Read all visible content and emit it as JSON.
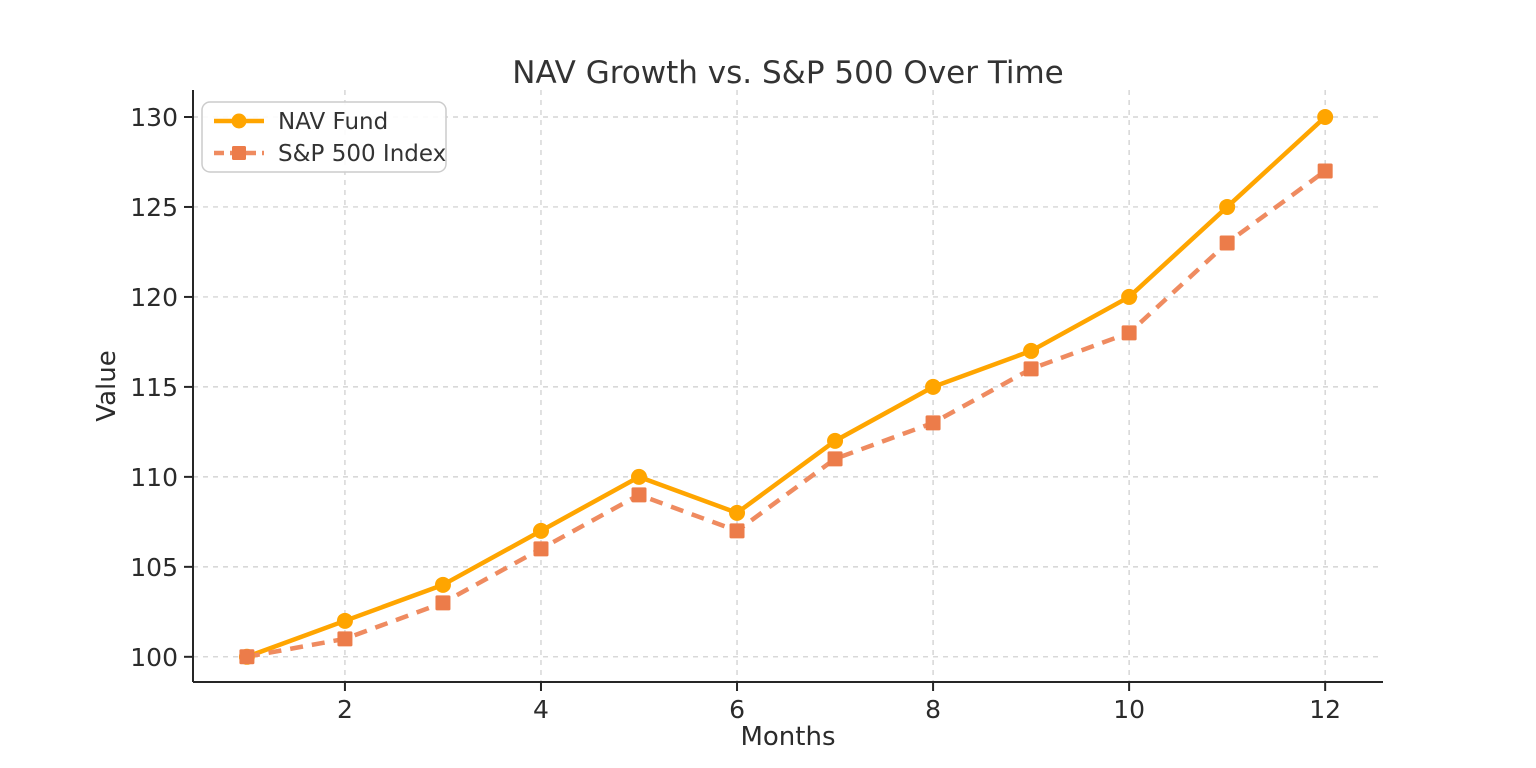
{
  "page": {
    "background": "#ffffff"
  },
  "chart_data": {
    "type": "line",
    "title": "NAV Growth vs. S&P 500 Over Time",
    "xlabel": "Months",
    "ylabel": "Value",
    "x": [
      1,
      2,
      3,
      4,
      5,
      6,
      7,
      8,
      9,
      10,
      11,
      12
    ],
    "series": [
      {
        "name": "NAV Fund",
        "values": [
          100,
          102,
          104,
          107,
          110,
          108,
          112,
          115,
          117,
          120,
          125,
          130
        ],
        "color": "#FFA500",
        "marker_color": "#FFA500",
        "line_style": "solid",
        "marker": "circle"
      },
      {
        "name": "S&P 500 Index",
        "values": [
          100,
          101,
          103,
          106,
          109,
          107,
          111,
          113,
          116,
          118,
          123,
          127
        ],
        "color": "#EF8B60",
        "marker_color": "#EC7C4A",
        "line_style": "dashed",
        "marker": "square"
      }
    ],
    "xticks": [
      2,
      4,
      6,
      8,
      10,
      12
    ],
    "yticks": [
      100,
      105,
      110,
      115,
      120,
      125,
      130
    ],
    "xlim": [
      0.45,
      12.59
    ],
    "ylim": [
      98.6,
      131.5
    ],
    "grid": true,
    "grid_style": "dashed",
    "legend_position": "upper-left",
    "colors": {
      "text": "#2b2b2b",
      "title": "#333333",
      "grid": "#cccccc",
      "spine": "#262626",
      "legend_border": "#cccccc",
      "legend_background": "#ffffff"
    }
  }
}
